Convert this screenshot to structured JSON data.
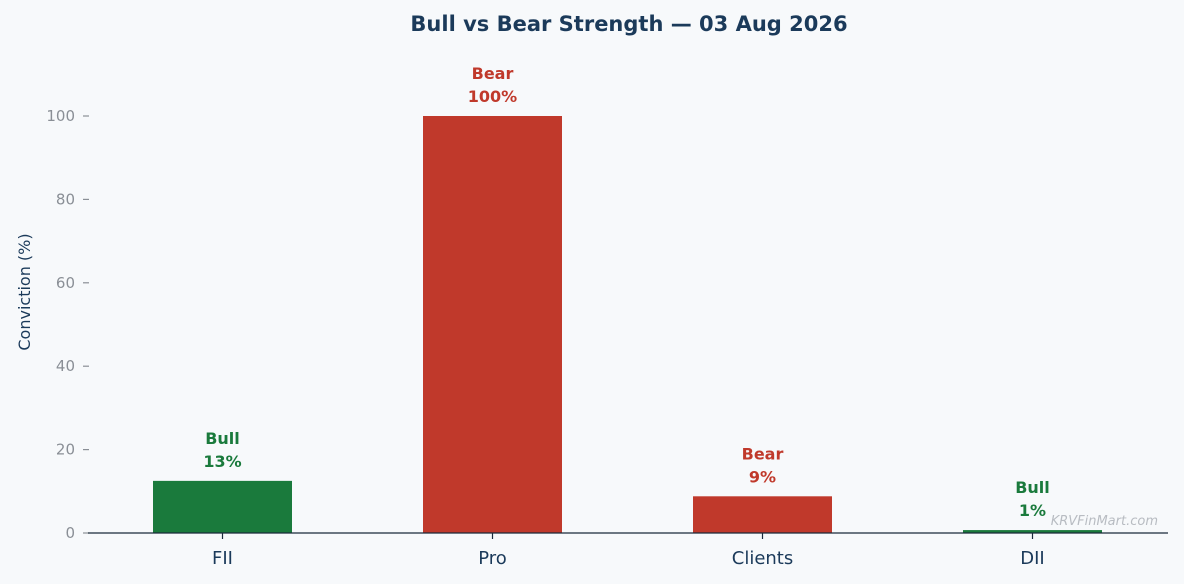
{
  "chart_data": {
    "type": "bar",
    "title": "Bull vs Bear Strength — 03 Aug 2026",
    "xlabel": "",
    "ylabel": "Conviction (%)",
    "ylim": [
      0,
      110
    ],
    "yticks": [
      0,
      20,
      40,
      60,
      80,
      100
    ],
    "categories": [
      "FII",
      "Pro",
      "Clients",
      "DII"
    ],
    "values": [
      12.5,
      100,
      8.8,
      0.7
    ],
    "sentiments": [
      "Bull",
      "Bear",
      "Bear",
      "Bull"
    ],
    "value_labels": [
      "13%",
      "100%",
      "9%",
      "1%"
    ],
    "grid": false,
    "colors": {
      "Bull": "#1a7a3c",
      "Bear": "#c0392b"
    }
  },
  "watermark": "KRVFinMart.com"
}
